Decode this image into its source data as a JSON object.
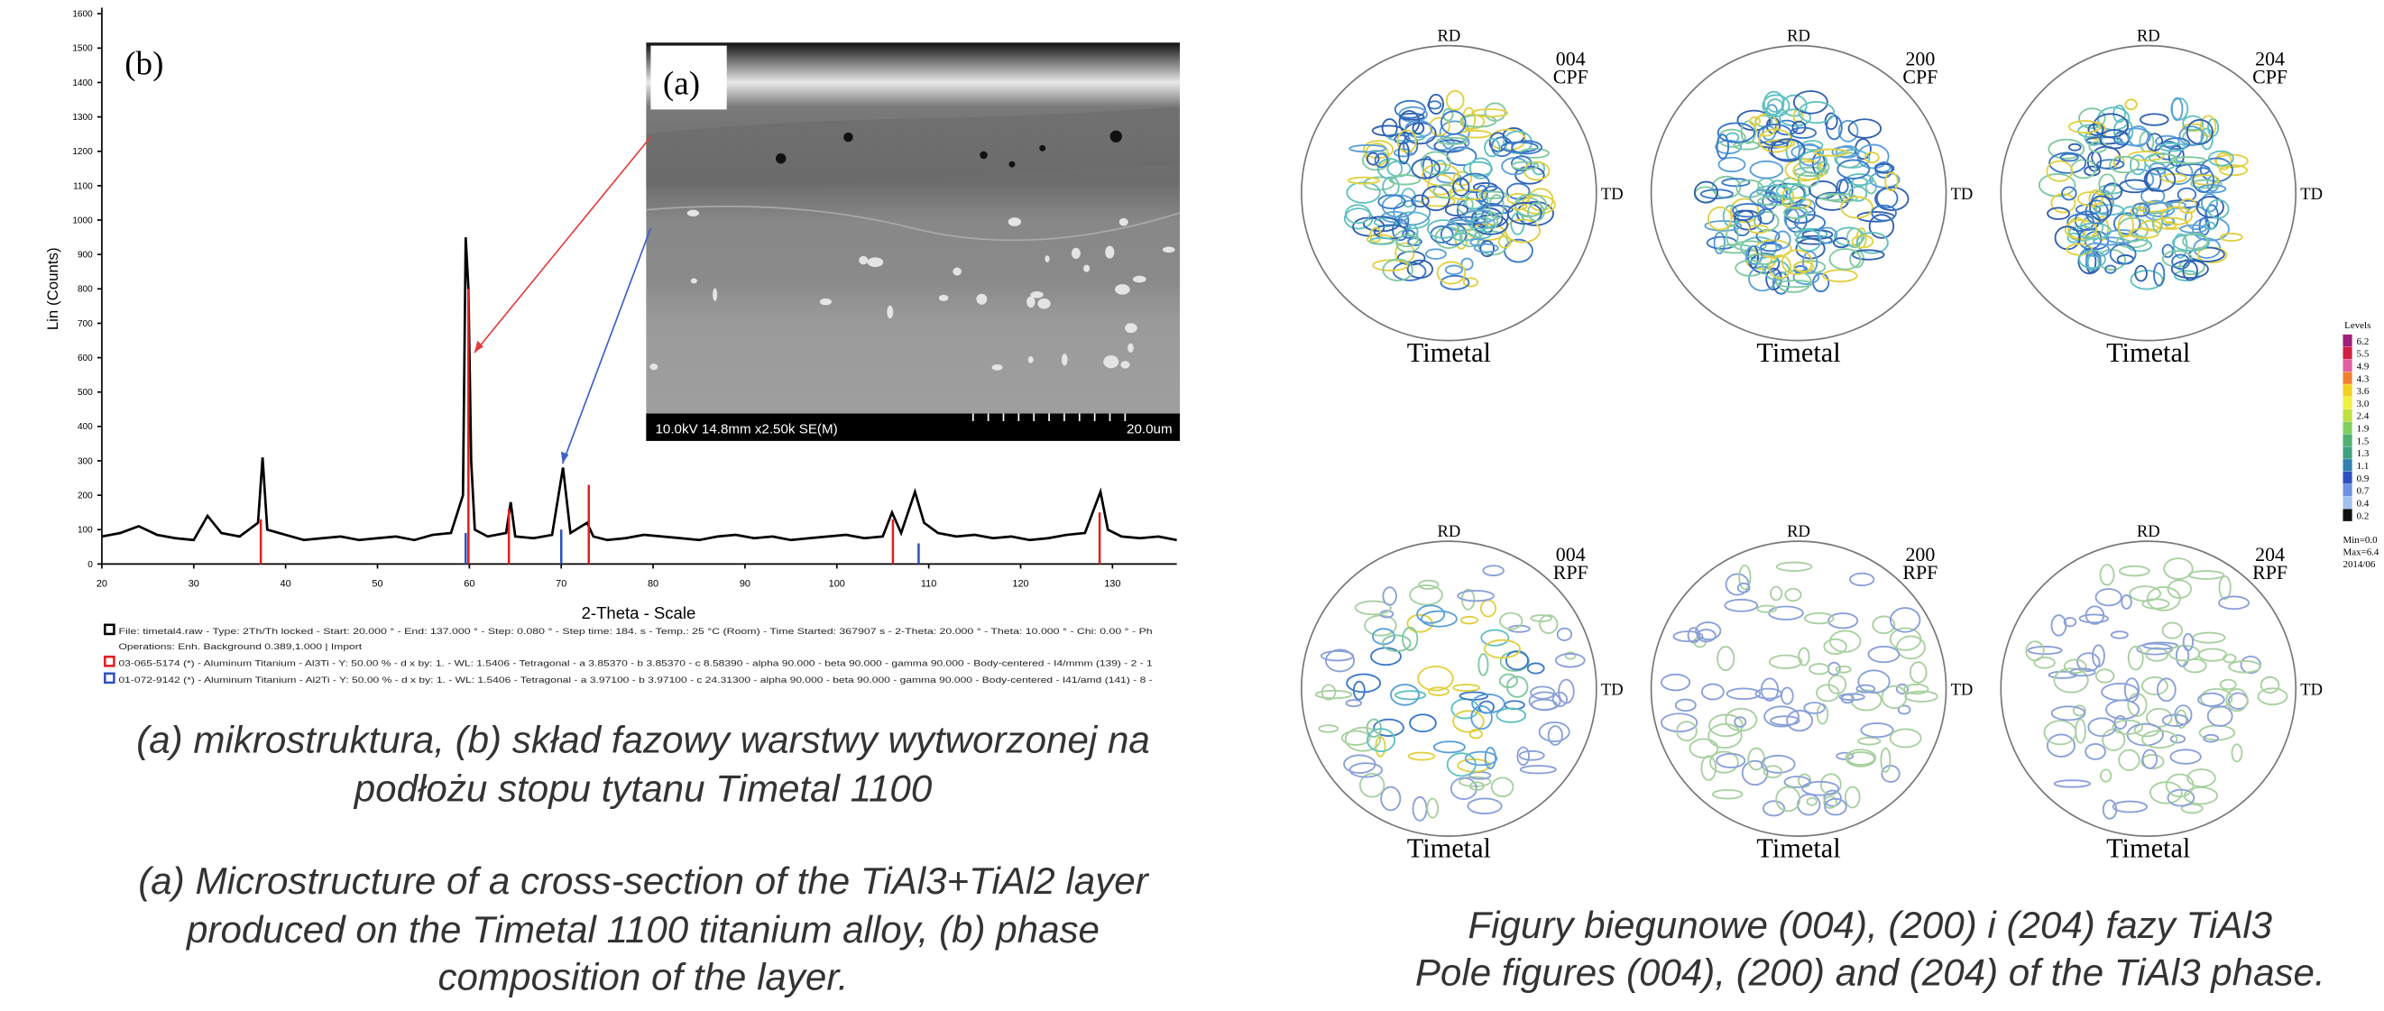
{
  "xrd": {
    "type": "line",
    "panel_label": "(b)",
    "y_label": "Lin (Counts)",
    "x_label": "2-Theta - Scale",
    "xlim": [
      20,
      137
    ],
    "ylim": [
      0,
      1600
    ],
    "xticks": [
      20,
      30,
      40,
      50,
      60,
      70,
      80,
      90,
      100,
      110,
      120,
      130
    ],
    "yticks": [
      0,
      100,
      200,
      300,
      400,
      500,
      600,
      700,
      800,
      900,
      1000,
      1100,
      1200,
      1300,
      1400,
      1500,
      1600
    ],
    "trace": {
      "color": "#000000",
      "x": [
        20,
        22,
        24,
        26,
        28,
        30,
        31.5,
        33,
        35,
        37,
        37.5,
        38,
        40,
        42,
        44,
        46,
        48,
        50,
        52,
        54,
        56,
        58,
        59.3,
        59.6,
        59.9,
        60.2,
        60.6,
        62,
        64,
        64.5,
        65,
        67,
        69,
        70.2,
        71,
        72.8,
        73.5,
        75,
        77,
        79,
        81,
        83,
        85,
        87,
        89,
        91,
        93,
        95,
        97,
        99,
        101,
        103,
        105,
        106,
        107,
        108.5,
        109.5,
        111,
        113,
        115,
        117,
        119,
        121,
        123,
        125,
        127,
        128.7,
        129.5,
        131,
        133,
        135,
        137
      ],
      "y": [
        80,
        90,
        110,
        85,
        75,
        70,
        140,
        90,
        80,
        120,
        310,
        100,
        85,
        70,
        75,
        80,
        70,
        75,
        80,
        70,
        85,
        90,
        200,
        950,
        800,
        300,
        100,
        80,
        90,
        180,
        80,
        75,
        85,
        280,
        90,
        120,
        80,
        70,
        75,
        85,
        80,
        75,
        70,
        80,
        85,
        75,
        80,
        70,
        75,
        80,
        85,
        75,
        80,
        150,
        90,
        210,
        120,
        90,
        80,
        85,
        75,
        80,
        70,
        75,
        85,
        90,
        210,
        100,
        80,
        75,
        80,
        70
      ]
    },
    "phases": [
      {
        "color": "#e02020",
        "positions": [
          37.3,
          59.9,
          64.3,
          73.0,
          106.1,
          128.6
        ],
        "heights": [
          130,
          800,
          160,
          230,
          130,
          150
        ]
      },
      {
        "color": "#3050c0",
        "positions": [
          59.6,
          70.0,
          108.9
        ],
        "heights": [
          90,
          100,
          60
        ]
      }
    ],
    "legend": [
      "File: timetal4.raw - Type: 2Th/Th locked - Start: 20.000 ° - End: 137.000 ° - Step: 0.080 ° - Step time: 184. s - Temp.: 25 °C (Room) - Time Started: 367907 s - 2-Theta: 20.000 ° - Theta: 10.000 ° - Chi: 0.00 ° - Ph",
      "Operations: Enh. Background 0.389,1.000 | Import",
      "03-065-5174 (*) - Aluminum Titanium - Al3Ti - Y: 50.00 % - d x by: 1. - WL: 1.5406 - Tetragonal - a 3.85370 - b 3.85370 - c 8.58390 - alpha 90.000 - beta 90.000 - gamma 90.000 - Body-centered - I4/mmm (139) - 2 - 1",
      "01-072-9142 (*) - Aluminum Titanium - Al2Ti - Y: 50.00 % - d x by: 1. - WL: 1.5406 - Tetragonal - a 3.97100 - b 3.97100 - c 24.31300 - alpha 90.000 - beta 90.000 - gamma 90.000 - Body-centered - I41/amd (141) - 8 -"
    ]
  },
  "sem": {
    "panel_label": "(a)",
    "info": "10.0kV 14.8mm x2.50k SE(M)",
    "scale": "20.0um"
  },
  "pole_figures": [
    {
      "rd": "RD",
      "td": "TD",
      "plane": "004",
      "kind": "CPF",
      "name": "Timetal"
    },
    {
      "rd": "RD",
      "td": "TD",
      "plane": "200",
      "kind": "CPF",
      "name": "Timetal"
    },
    {
      "rd": "RD",
      "td": "TD",
      "plane": "204",
      "kind": "CPF",
      "name": "Timetal"
    },
    {
      "rd": "RD",
      "td": "TD",
      "plane": "004",
      "kind": "RPF",
      "name": "Timetal"
    },
    {
      "rd": "RD",
      "td": "TD",
      "plane": "200",
      "kind": "RPF",
      "name": "Timetal"
    },
    {
      "rd": "RD",
      "td": "TD",
      "plane": "204",
      "kind": "RPF",
      "name": "Timetal"
    }
  ],
  "levels": {
    "title": "Levels",
    "labels": [
      "6.2",
      "5.5",
      "4.9",
      "4.3",
      "3.6",
      "3.0",
      "2.4",
      "1.9",
      "1.5",
      "1.3",
      "1.1",
      "0.9",
      "0.7",
      "0.4",
      "0.2"
    ],
    "colors": [
      "#a0207a",
      "#d02040",
      "#e060a0",
      "#f08030",
      "#f0d020",
      "#f0f040",
      "#c0e040",
      "#80d060",
      "#50b070",
      "#40a080",
      "#3080b0",
      "#3050c0",
      "#7090e0",
      "#a0c0f0",
      "#101010"
    ],
    "notes": [
      "Min=0.0",
      "Max=6.4",
      "2014/06"
    ]
  },
  "captions": {
    "left_pl": [
      "(a) mikrostruktura, (b)  skład fazowy warstwy wytworzonej na",
      "podłożu stopu tytanu Timetal 1100"
    ],
    "left_en": [
      "(a) Microstructure of a cross-section of the TiAl3+TiAl2 layer",
      "produced on the Timetal 1100 titanium alloy, (b) phase",
      "composition of the layer."
    ],
    "right": [
      "Figury biegunowe (004), (200) i (204) fazy TiAl3",
      "Pole figures (004), (200) and (204) of the TiAl3 phase."
    ]
  }
}
